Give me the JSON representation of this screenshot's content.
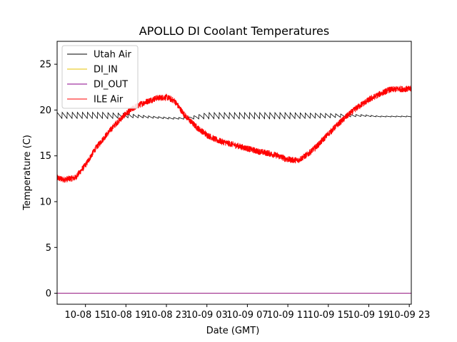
{
  "chart_data": {
    "type": "line",
    "title": "APOLLO DI Coolant Temperatures",
    "xlabel": "Date (GMT)",
    "ylabel": "Temperature (C)",
    "x_unit": "hours since 2019-10-08 00:00 GMT",
    "xlim": [
      12.2,
      47.2
    ],
    "ylim": [
      -1.2,
      27.5
    ],
    "x_ticks": [
      {
        "value": 15,
        "label": "10-08 15"
      },
      {
        "value": 19,
        "label": "10-08 19"
      },
      {
        "value": 23,
        "label": "10-08 23"
      },
      {
        "value": 27,
        "label": "10-09 03"
      },
      {
        "value": 31,
        "label": "10-09 07"
      },
      {
        "value": 35,
        "label": "10-09 11"
      },
      {
        "value": 39,
        "label": "10-09 15"
      },
      {
        "value": 43,
        "label": "10-09 19"
      },
      {
        "value": 47,
        "label": "10-09 23"
      }
    ],
    "y_ticks": [
      {
        "value": 0,
        "label": "0"
      },
      {
        "value": 5,
        "label": "5"
      },
      {
        "value": 10,
        "label": "10"
      },
      {
        "value": 15,
        "label": "15"
      },
      {
        "value": 20,
        "label": "20"
      },
      {
        "value": 25,
        "label": "25"
      }
    ],
    "legend_position": "top-left",
    "series": [
      {
        "name": "Utah Air",
        "color": "#000000",
        "style": "sawtooth",
        "x": [
          12.2,
          13.0,
          14.0,
          15.0,
          16.0,
          17.0,
          18.0,
          19.0,
          20.5,
          22.0,
          23.5,
          25.0,
          27.0,
          29.0,
          31.0,
          33.0,
          35.0,
          37.0,
          39.0,
          41.0,
          42.5,
          44.0,
          45.5,
          47.2
        ],
        "values": [
          19.4,
          19.4,
          19.4,
          19.4,
          19.4,
          19.4,
          19.4,
          19.4,
          19.3,
          19.2,
          19.1,
          19.1,
          19.4,
          19.4,
          19.4,
          19.4,
          19.4,
          19.4,
          19.4,
          19.4,
          19.4,
          19.3,
          19.3,
          19.3
        ],
        "amplitude": [
          0.7,
          0.7,
          0.7,
          0.7,
          0.7,
          0.7,
          0.6,
          0.5,
          0.3,
          0.2,
          0.2,
          0.2,
          0.7,
          0.7,
          0.7,
          0.7,
          0.7,
          0.6,
          0.5,
          0.3,
          0.2,
          0.1,
          0.1,
          0.1
        ]
      },
      {
        "name": "DI_IN",
        "color": "#e6c200",
        "style": "line",
        "x": [
          12.2,
          47.2
        ],
        "values": [
          0,
          0
        ]
      },
      {
        "name": "DI_OUT",
        "color": "#8b008b",
        "style": "line",
        "x": [
          12.2,
          47.2
        ],
        "values": [
          0,
          0
        ]
      },
      {
        "name": "ILE Air",
        "color": "#ff0000",
        "style": "noisy",
        "x": [
          12.2,
          12.8,
          14.0,
          15.0,
          16.0,
          17.0,
          18.0,
          19.0,
          20.0,
          21.0,
          22.0,
          23.0,
          23.8,
          24.5,
          25.0,
          26.0,
          27.0,
          28.0,
          29.0,
          30.0,
          31.0,
          32.0,
          33.0,
          34.0,
          35.0,
          36.0,
          37.0,
          38.0,
          39.0,
          40.0,
          41.0,
          42.0,
          43.0,
          44.0,
          45.0,
          46.0,
          47.2
        ],
        "values": [
          12.6,
          12.4,
          12.6,
          14.0,
          15.8,
          17.2,
          18.5,
          19.6,
          20.4,
          20.9,
          21.3,
          21.4,
          21.0,
          19.9,
          19.2,
          18.1,
          17.3,
          16.7,
          16.4,
          16.1,
          15.8,
          15.5,
          15.3,
          15.0,
          14.6,
          14.5,
          15.2,
          16.2,
          17.4,
          18.5,
          19.5,
          20.4,
          21.1,
          21.7,
          22.2,
          22.3,
          22.3
        ],
        "noise": 0.35
      }
    ]
  }
}
